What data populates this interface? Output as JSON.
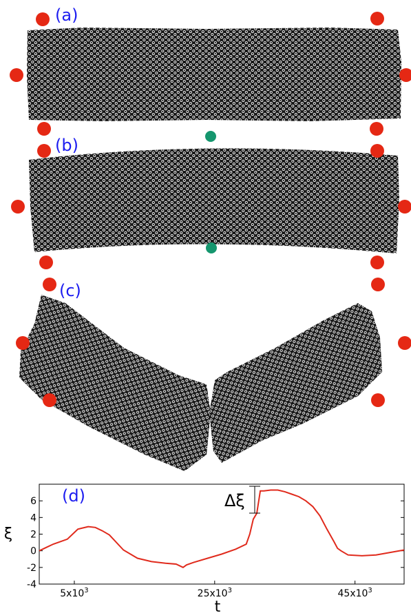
{
  "panels": [
    {
      "label": "(a)"
    },
    {
      "label": "(b)"
    },
    {
      "label": "(c)"
    }
  ],
  "colors": {
    "label": "#1d1df0",
    "force_point": "#e52814",
    "mid_point": "#15966e",
    "particles": "#1a1a1a",
    "curve": "#e02a1c"
  },
  "chart_data": {
    "type": "line",
    "panel_label": "(d)",
    "xlabel": "t",
    "ylabel": "ξ",
    "annotation": "Δξ",
    "xlim": [
      0,
      52000
    ],
    "ylim": [
      -4,
      8
    ],
    "xtick_labels": [
      "5x10",
      "25x10",
      "45x10"
    ],
    "xtick_exponent": "3",
    "xticks": [
      5000,
      25000,
      45000
    ],
    "ytick_labels": [
      "6",
      "4",
      "2",
      "0",
      "-2",
      "-4"
    ],
    "yticks": [
      6,
      4,
      2,
      0,
      -2,
      -4
    ],
    "series": [
      {
        "x": [
          0,
          1000,
          2000,
          3000,
          4000,
          5000,
          5500,
          6000,
          7000,
          8000,
          9000,
          10000,
          12000,
          14000,
          16000,
          18000,
          19500,
          20500,
          21000,
          22000,
          24000,
          26000,
          28000,
          29500,
          30000,
          30500,
          31000,
          31500,
          32000,
          33000,
          34000,
          35000,
          36000,
          37000,
          38000,
          39000,
          40000,
          41000,
          42000,
          42500,
          43000,
          44000,
          46000,
          48000,
          50000,
          52000
        ],
        "y": [
          0.0,
          0.4,
          0.8,
          1.1,
          1.4,
          2.2,
          2.6,
          2.7,
          2.9,
          2.8,
          2.4,
          1.9,
          0.1,
          -0.9,
          -1.3,
          -1.5,
          -1.6,
          -2.0,
          -1.7,
          -1.4,
          -0.9,
          -0.4,
          0.2,
          0.8,
          2.0,
          3.8,
          4.5,
          7.2,
          7.2,
          7.3,
          7.3,
          7.1,
          6.8,
          6.5,
          6.0,
          5.3,
          4.2,
          2.6,
          1.1,
          0.3,
          0.0,
          -0.5,
          -0.6,
          -0.5,
          -0.2,
          0.1
        ]
      }
    ]
  }
}
